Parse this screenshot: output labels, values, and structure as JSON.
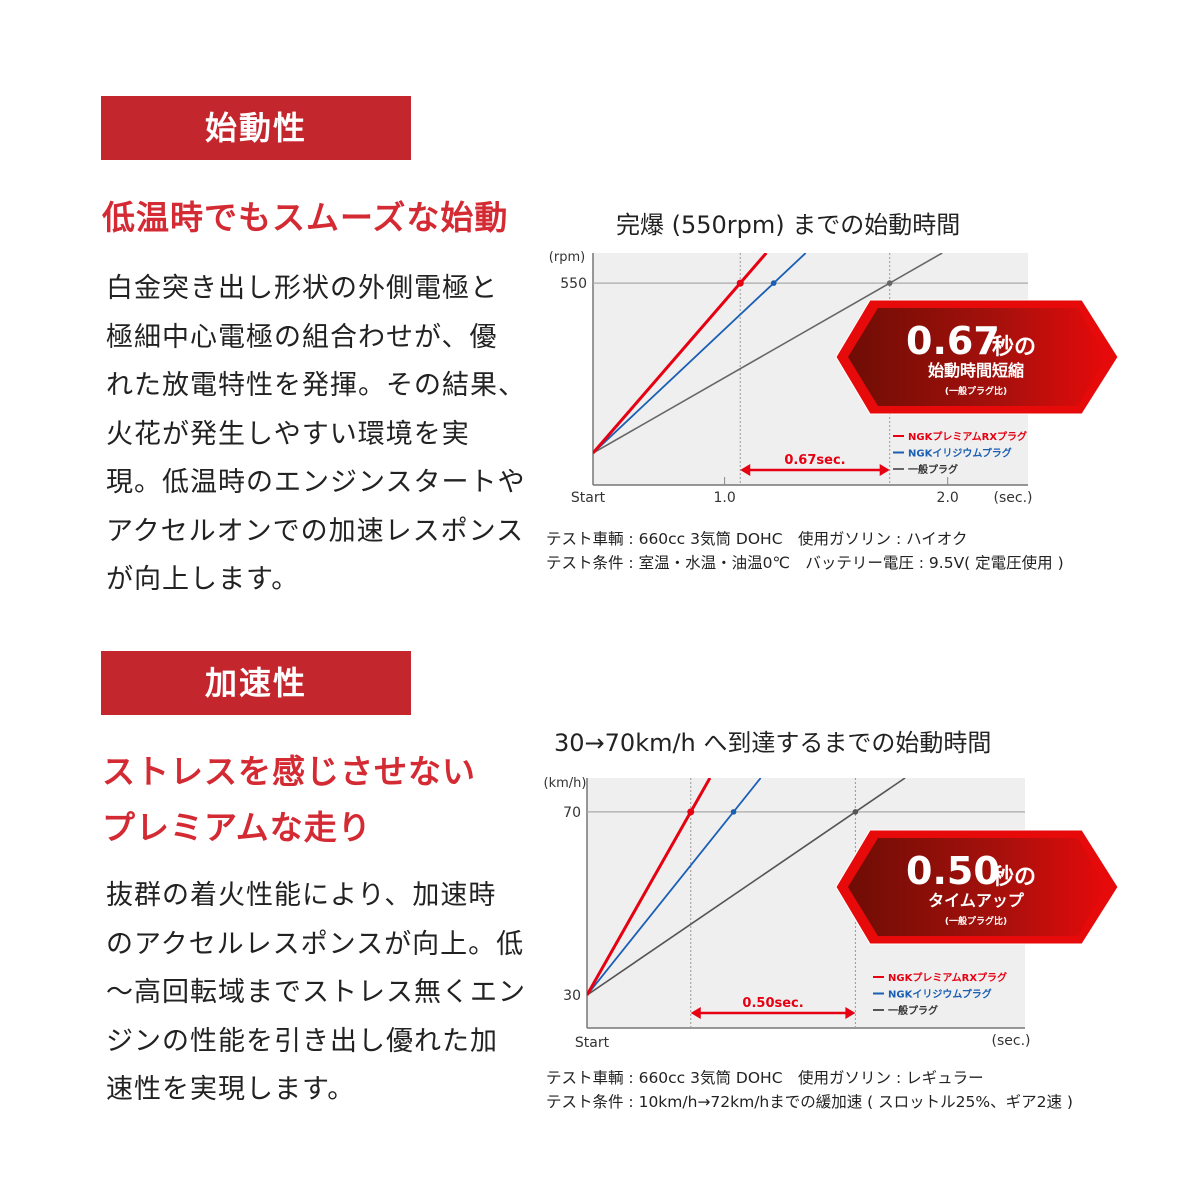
{
  "sections": [
    {
      "heading": "始動性",
      "subtitle_lines": [
        "低温時でもスムーズな始動"
      ],
      "body_lines": [
        "白金突き出し形状の外側電極と",
        "極細中心電極の組合わせが、優",
        "れた放電特性を発揮。その結果、",
        "火花が発生しやすい環境を実",
        "現。低温時のエンジンスタートや",
        "アクセルオンでの加速レスポンス",
        "が向上します。"
      ],
      "chart_title": "完爆 (550rpm) までの始動時間",
      "notes": [
        "テスト車輌 : 660cc 3気筒 DOHC　使用ガソリン : ハイオク",
        "テスト条件 : 室温・水温・油温0℃　バッテリー電圧 : 9.5V( 定電圧使用 )"
      ]
    },
    {
      "heading": "加速性",
      "subtitle_lines": [
        "ストレスを感じさせない",
        "プレミアムな走り"
      ],
      "body_lines": [
        "抜群の着火性能により、加速時",
        "のアクセルレスポンスが向上。低",
        "～高回転域までストレス無くエン",
        "ジンの性能を引き出し優れた加",
        "速性を実現します。"
      ],
      "chart_title": "30→70km/h へ到達するまでの始動時間",
      "notes": [
        "テスト車輌 : 660cc 3気筒 DOHC　使用ガソリン : レギュラー",
        "テスト条件 : 10km/h→72km/hまでの緩加速 ( スロットル25%、ギア2速 )"
      ]
    }
  ],
  "chart_data": [
    {
      "type": "line",
      "ylabel": "(rpm)",
      "xlabel": "(sec.)",
      "x_start_label": "Start",
      "xticks": [
        {
          "value": 1.0,
          "label": "1.0"
        },
        {
          "value": 2.0,
          "label": "2.0"
        }
      ],
      "yticks": [
        {
          "value": 550,
          "label": "550"
        }
      ],
      "xlim": [
        0.41,
        2.36
      ],
      "ylim": [
        0,
        632
      ],
      "start": {
        "x": 0.41,
        "y": 87
      },
      "target_y": 550,
      "series": [
        {
          "name": "NGKプレミアムRXプラグ",
          "color": "#e60012",
          "reach_x": 1.07
        },
        {
          "name": "NGKイリジウムプラグ",
          "color": "#1a5fb4",
          "reach_x": 1.22
        },
        {
          "name": "一般プラグ",
          "color": "#666666",
          "reach_x": 1.74
        }
      ],
      "gap_label": "0.67sec.",
      "badge": {
        "big": "0.67",
        "unit": "秒の",
        "line2": "始動時間短縮",
        "line3": "(一般プラグ比)"
      },
      "grid": true,
      "legend": "bottom-right"
    },
    {
      "type": "line",
      "ylabel": "(km/h)",
      "xlabel": "(sec.)",
      "x_start_label": "Start",
      "xticks": [],
      "yticks": [
        {
          "value": 70,
          "label": "70"
        },
        {
          "value": 30,
          "label": "30"
        }
      ],
      "xlim": [
        0,
        1.33
      ],
      "ylim": [
        22.8,
        77.4
      ],
      "start": {
        "x": 0,
        "y": 30
      },
      "target_y": 70,
      "series": [
        {
          "name": "NGKプレミアムRXプラグ",
          "color": "#e60012",
          "reach_x": 0.315
        },
        {
          "name": "NGKイリジウムプラグ",
          "color": "#1a5fb4",
          "reach_x": 0.445
        },
        {
          "name": "一般プラグ",
          "color": "#555555",
          "reach_x": 0.815
        }
      ],
      "gap_label": "0.50sec.",
      "badge": {
        "big": "0.50",
        "unit": "秒の",
        "line2": "タイムアップ",
        "line3": "(一般プラグ比)"
      },
      "grid": true,
      "legend": "bottom-right"
    }
  ],
  "colors": {
    "accent": "#c4262e",
    "subtitle": "#d42a33",
    "plot_bg": "#efefef"
  }
}
